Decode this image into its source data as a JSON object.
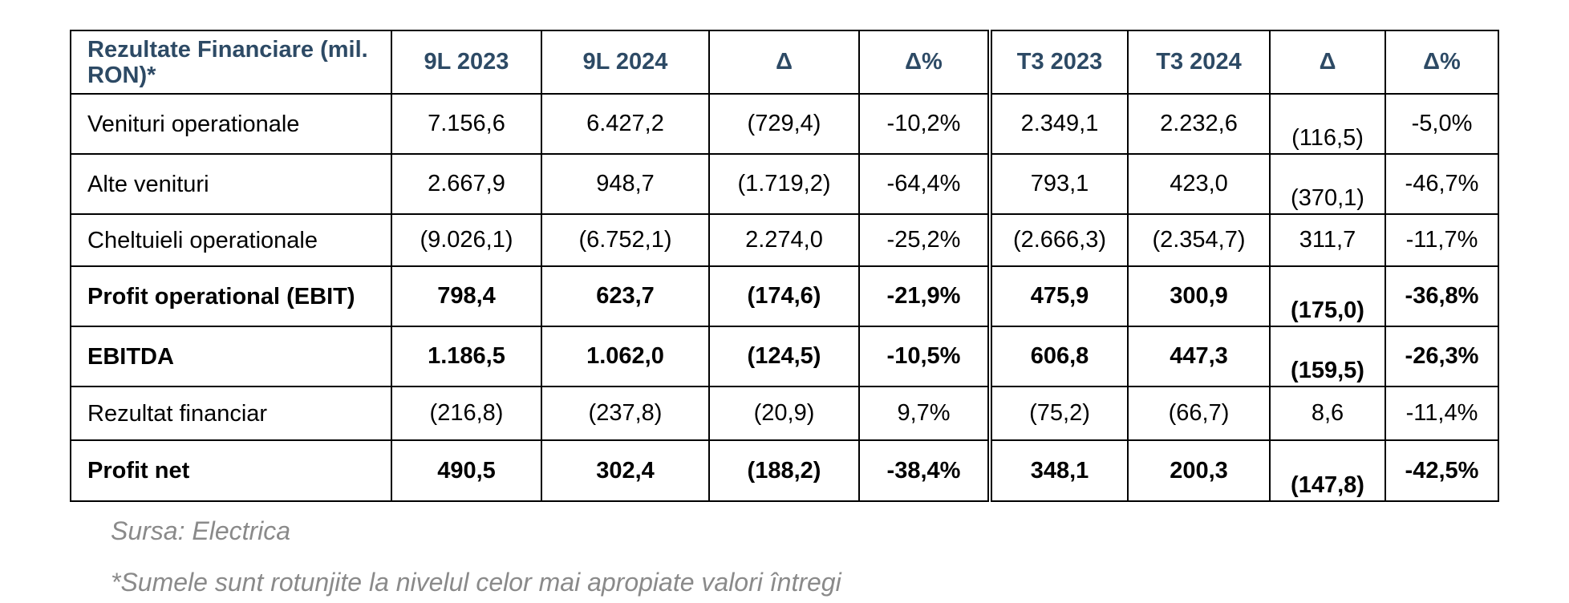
{
  "table": {
    "headers": [
      "Rezultate Financiare (mil. RON)*",
      "9L 2023",
      "9L 2024",
      "Δ",
      "Δ%",
      "T3 2023",
      "T3 2024",
      "Δ",
      "Δ%"
    ],
    "rows": [
      {
        "label": "Venituri operationale",
        "bold": false,
        "values": [
          "7.156,6",
          "6.427,2",
          "(729,4)",
          "-10,2%",
          "2.349,1",
          "2.232,6",
          "(116,5)",
          "-5,0%"
        ]
      },
      {
        "label": "Alte venituri",
        "bold": false,
        "values": [
          "2.667,9",
          "948,7",
          "(1.719,2)",
          "-64,4%",
          "793,1",
          "423,0",
          "(370,1)",
          "-46,7%"
        ]
      },
      {
        "label": "Cheltuieli operationale",
        "bold": false,
        "values": [
          "(9.026,1)",
          "(6.752,1)",
          "2.274,0",
          "-25,2%",
          "(2.666,3)",
          "(2.354,7)",
          "311,7",
          "-11,7%"
        ]
      },
      {
        "label": "Profit operational (EBIT)",
        "bold": true,
        "values": [
          "798,4",
          "623,7",
          "(174,6)",
          "-21,9%",
          "475,9",
          "300,9",
          "(175,0)",
          "-36,8%"
        ]
      },
      {
        "label": "EBITDA",
        "bold": true,
        "values": [
          "1.186,5",
          "1.062,0",
          "(124,5)",
          "-10,5%",
          "606,8",
          "447,3",
          "(159,5)",
          "-26,3%"
        ]
      },
      {
        "label": "Rezultat financiar",
        "bold": false,
        "values": [
          "(216,8)",
          "(237,8)",
          "(20,9)",
          "9,7%",
          "(75,2)",
          "(66,7)",
          "8,6",
          "-11,4%"
        ]
      },
      {
        "label": "Profit net",
        "bold": true,
        "values": [
          "490,5",
          "302,4",
          "(188,2)",
          "-38,4%",
          "348,1",
          "200,3",
          "(147,8)",
          "-42,5%"
        ]
      }
    ]
  },
  "notes": {
    "source": "Sursa: Electrica",
    "rounding": "*Sumele sunt rotunjite la nivelul celor mai apropiate valori întregi"
  }
}
